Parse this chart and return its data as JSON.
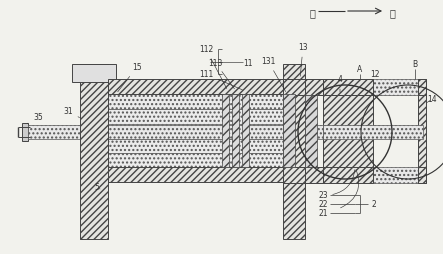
{
  "bg_color": "#f2f2ed",
  "line_color": "#444444",
  "figsize": [
    4.43,
    2.55
  ],
  "dpi": 100,
  "arrow_label_left": "左",
  "arrow_label_right": "右",
  "fs": 5.5,
  "lc2": "#333333",
  "lw_ann": 0.45,
  "hatch_fc": "#e4e4e0",
  "hatch_fc2": "#d8d8d4"
}
